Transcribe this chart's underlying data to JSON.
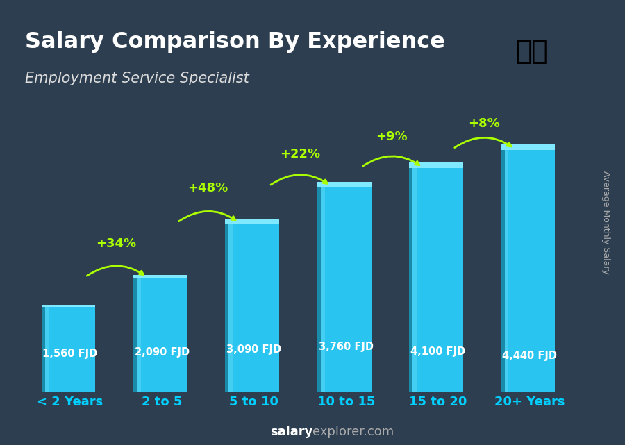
{
  "title": "Salary Comparison By Experience",
  "subtitle": "Employment Service Specialist",
  "categories": [
    "< 2 Years",
    "2 to 5",
    "5 to 10",
    "10 to 15",
    "15 to 20",
    "20+ Years"
  ],
  "values": [
    1560,
    2090,
    3090,
    3760,
    4100,
    4440
  ],
  "labels": [
    "1,560 FJD",
    "2,090 FJD",
    "3,090 FJD",
    "3,760 FJD",
    "4,100 FJD",
    "4,440 FJD"
  ],
  "pct_labels": [
    "+34%",
    "+48%",
    "+22%",
    "+9%",
    "+8%"
  ],
  "bar_color_top": "#00cfff",
  "bar_color_mid": "#29a8d4",
  "bar_color_bot": "#1a7aaa",
  "bg_color": "#1a2a3a",
  "title_color": "#ffffff",
  "subtitle_color": "#dddddd",
  "label_color": "#ffffff",
  "pct_color": "#aaff00",
  "arrow_color": "#aaff00",
  "xlabel_color": "#00cfff",
  "footer_color": "#cccccc",
  "footer_bold": "salary",
  "footer_normal": "explorer.com",
  "right_label": "Average Monthly Salary",
  "ylim": [
    0,
    5200
  ],
  "bar_width": 0.55
}
